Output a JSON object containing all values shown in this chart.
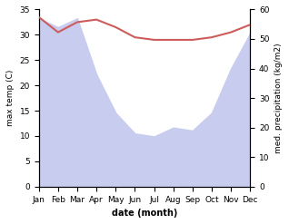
{
  "months": [
    "Jan",
    "Feb",
    "Mar",
    "Apr",
    "May",
    "Jun",
    "Jul",
    "Aug",
    "Sep",
    "Oct",
    "Nov",
    "Dec"
  ],
  "temperature": [
    33.5,
    30.5,
    32.5,
    33.0,
    31.5,
    29.5,
    29.0,
    29.0,
    29.0,
    29.5,
    30.5,
    32.0
  ],
  "precipitation": [
    57,
    54,
    57,
    38,
    25,
    18,
    17,
    20,
    19,
    25,
    40,
    52
  ],
  "temp_color": "#cd5c5c",
  "precip_fill_color": "#c8ccee",
  "ylabel_left": "max temp (C)",
  "ylabel_right": "med. precipitation (kg/m2)",
  "xlabel": "date (month)",
  "ylim_left": [
    0,
    35
  ],
  "ylim_right": [
    0,
    60
  ],
  "yticks_left": [
    0,
    5,
    10,
    15,
    20,
    25,
    30,
    35
  ],
  "yticks_right": [
    0,
    10,
    20,
    30,
    40,
    50,
    60
  ],
  "bg_color": "#ffffff",
  "line_width": 1.5
}
